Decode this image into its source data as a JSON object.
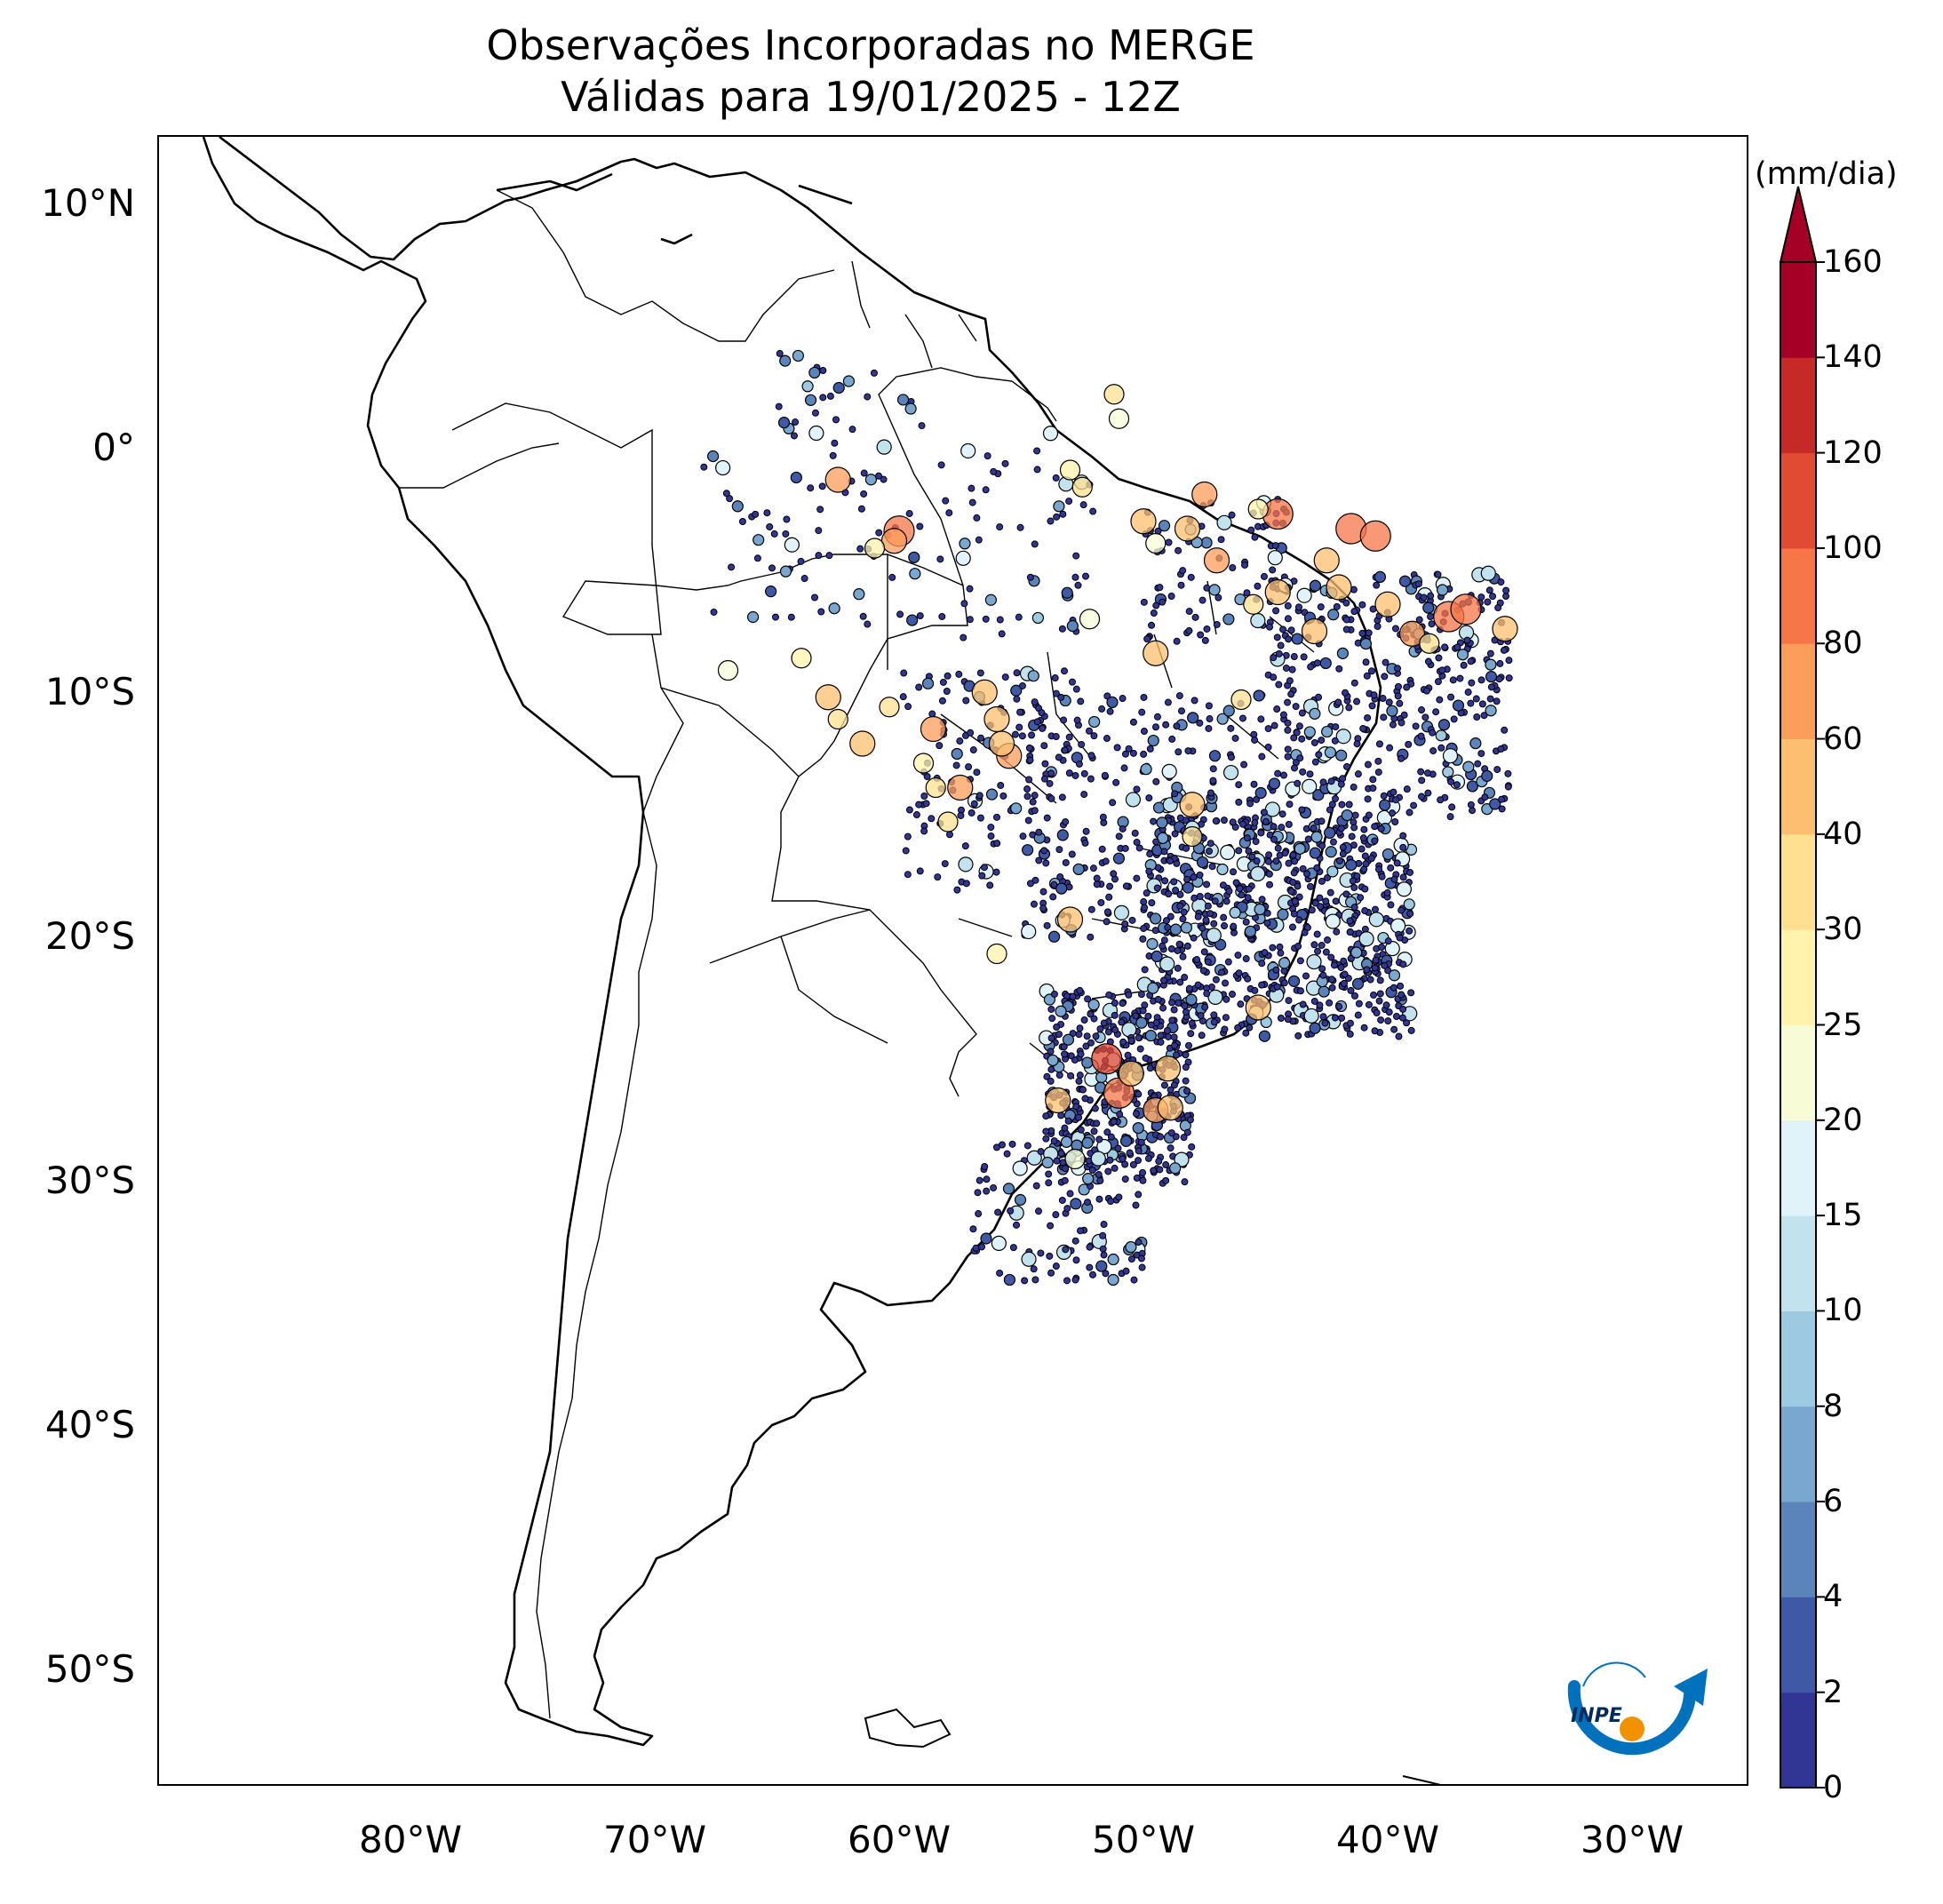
{
  "title": {
    "line1": "Observações Incorporadas no MERGE",
    "line2": "Válidas para 19/01/2025 - 12Z"
  },
  "map": {
    "type": "station precipitation observations",
    "extent": {
      "lon_min": -90,
      "lon_max": -25,
      "lat_min": -56,
      "lat_max": 13
    },
    "lat_ticks": [
      {
        "value": 10,
        "label": "10°N"
      },
      {
        "value": 0,
        "label": "0°"
      },
      {
        "value": -10,
        "label": "10°S"
      },
      {
        "value": -20,
        "label": "20°S"
      },
      {
        "value": -30,
        "label": "30°S"
      },
      {
        "value": -40,
        "label": "40°S"
      },
      {
        "value": -50,
        "label": "50°S"
      }
    ],
    "lon_ticks": [
      {
        "value": -80,
        "label": "80°W"
      },
      {
        "value": -70,
        "label": "70°W"
      },
      {
        "value": -60,
        "label": "60°W"
      },
      {
        "value": -50,
        "label": "50°W"
      },
      {
        "value": -40,
        "label": "40°W"
      },
      {
        "value": -30,
        "label": "30°W"
      }
    ]
  },
  "colorbar": {
    "unit": "(mm/dia)",
    "levels": [
      0,
      2,
      4,
      6,
      8,
      10,
      15,
      20,
      25,
      30,
      40,
      60,
      80,
      100,
      120,
      140,
      160
    ],
    "colors": [
      "#313695",
      "#3f59a7",
      "#5b84bb",
      "#79a7cf",
      "#9ecae1",
      "#c2e3ee",
      "#e0f3f8",
      "#f7fcd7",
      "#fff3ad",
      "#fee090",
      "#fdbf6f",
      "#fc9e5a",
      "#f67648",
      "#e14a33",
      "#c62a27",
      "#a50026"
    ],
    "extend_color": "#a50026"
  },
  "logo": {
    "text": "INPE"
  },
  "chart_data": {
    "type": "scatter",
    "title": "Observações Incorporadas no MERGE",
    "subtitle": "Válidas para 19/01/2025 - 12Z",
    "xlabel": "",
    "ylabel": "",
    "colorbar_label": "(mm/dia)",
    "series": [
      {
        "points": [
          [
            -60.0,
            -3.3,
            90
          ],
          [
            -60.2,
            -3.7,
            70
          ],
          [
            -62.5,
            -1.2,
            75
          ],
          [
            -44.5,
            -2.6,
            95
          ],
          [
            -41.5,
            -3.2,
            95
          ],
          [
            -40.5,
            -3.5,
            90
          ],
          [
            -37.5,
            -6.8,
            90
          ],
          [
            -36.8,
            -6.5,
            80
          ],
          [
            -51.5,
            -24.9,
            100
          ],
          [
            -51.0,
            -26.3,
            85
          ],
          [
            -49.5,
            -27.0,
            60
          ],
          [
            -48.9,
            -26.9,
            55
          ],
          [
            -49.0,
            -25.3,
            45
          ],
          [
            -50.5,
            -25.5,
            50
          ],
          [
            -55.5,
            -12.5,
            60
          ],
          [
            -55.8,
            -12.0,
            55
          ],
          [
            -57.5,
            -13.8,
            70
          ],
          [
            -58.6,
            -11.4,
            60
          ],
          [
            -56.5,
            -9.9,
            50
          ],
          [
            -56.0,
            -11.0,
            45
          ],
          [
            -62.9,
            -10.1,
            50
          ],
          [
            -61.5,
            -12.0,
            40
          ],
          [
            -60.4,
            -10.5,
            35
          ],
          [
            -48.2,
            -3.2,
            50
          ],
          [
            -50.0,
            -2.9,
            55
          ],
          [
            -47.0,
            -4.5,
            65
          ],
          [
            -47.5,
            -1.8,
            60
          ],
          [
            -44.5,
            -5.8,
            45
          ],
          [
            -42.5,
            -4.5,
            40
          ],
          [
            -42.0,
            -5.6,
            55
          ],
          [
            -40.0,
            -6.3,
            45
          ],
          [
            -39.0,
            -7.5,
            70
          ],
          [
            -35.2,
            -7.3,
            50
          ],
          [
            -38.3,
            -7.9,
            35
          ],
          [
            -43.0,
            -7.4,
            50
          ],
          [
            -49.5,
            -8.3,
            45
          ],
          [
            -46.0,
            -10.2,
            30
          ],
          [
            -48.0,
            -14.5,
            40
          ],
          [
            -48.0,
            -15.8,
            30
          ],
          [
            -53.0,
            -19.2,
            50
          ],
          [
            -56.0,
            -20.6,
            25
          ],
          [
            -45.3,
            -22.8,
            50
          ],
          [
            -53.5,
            -26.6,
            45
          ],
          [
            -52.8,
            -29.0,
            20
          ],
          [
            -45.5,
            -6.3,
            35
          ],
          [
            -45.3,
            -2.4,
            25
          ],
          [
            -49.5,
            -3.8,
            20
          ],
          [
            -52.5,
            -1.5,
            30
          ],
          [
            -53.0,
            -0.8,
            25
          ],
          [
            -53.8,
            0.7,
            15
          ],
          [
            -51.2,
            2.3,
            30
          ],
          [
            -51.0,
            1.3,
            20
          ],
          [
            -52.2,
            -6.9,
            20
          ],
          [
            -61.0,
            -4.0,
            25
          ],
          [
            -67.0,
            -9.0,
            20
          ],
          [
            -64.0,
            -8.5,
            25
          ],
          [
            -62.5,
            -11.0,
            30
          ],
          [
            -59.0,
            -12.8,
            25
          ],
          [
            -58.0,
            -15.2,
            30
          ],
          [
            -58.5,
            -13.8,
            35
          ]
        ]
      }
    ]
  }
}
